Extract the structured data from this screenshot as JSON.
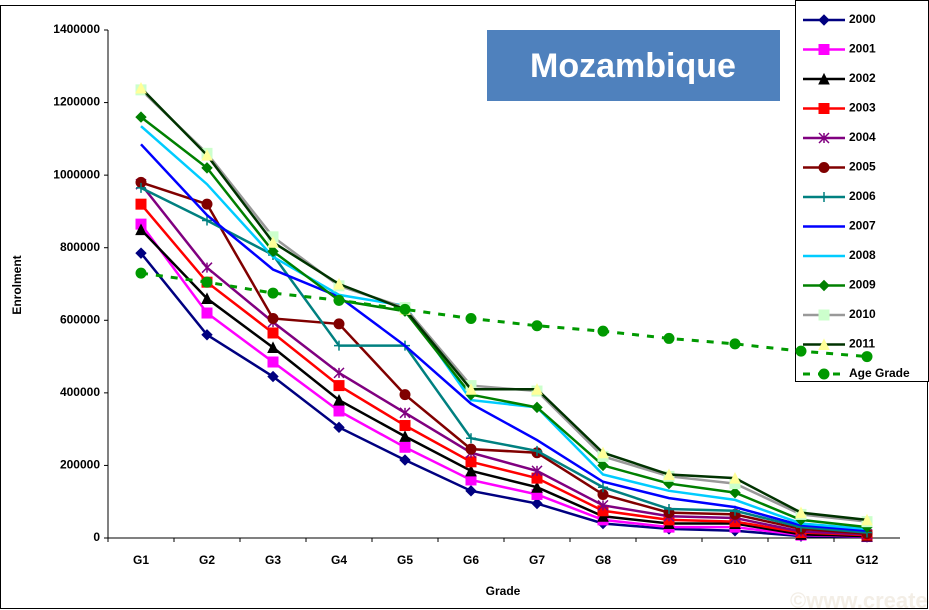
{
  "chart_data": {
    "type": "line",
    "title": "Mozambique",
    "x_label": "Grade",
    "y_label": "Enrolment",
    "watermark": "©www.create-rpc.org",
    "categories": [
      "G1",
      "G2",
      "G3",
      "G4",
      "G5",
      "G6",
      "G7",
      "G8",
      "G9",
      "G10",
      "G11",
      "G12"
    ],
    "ylim": [
      0,
      1400000
    ],
    "yticks": [
      0,
      200000,
      400000,
      600000,
      800000,
      1000000,
      1200000,
      1400000
    ],
    "grid": false,
    "legend": "right",
    "series": [
      {
        "name": "2000",
        "color": "#000080",
        "marker": "diamond",
        "values": [
          785000,
          560000,
          445000,
          305000,
          215000,
          130000,
          95000,
          40000,
          25000,
          20000,
          5000,
          3000
        ]
      },
      {
        "name": "2001",
        "color": "#ff00ff",
        "marker": "square",
        "values": [
          865000,
          620000,
          485000,
          350000,
          250000,
          160000,
          120000,
          50000,
          30000,
          30000,
          8000,
          4000
        ]
      },
      {
        "name": "2002",
        "color": "#000000",
        "marker": "triangle",
        "values": [
          850000,
          660000,
          525000,
          380000,
          280000,
          185000,
          140000,
          60000,
          40000,
          40000,
          10000,
          5000
        ]
      },
      {
        "name": "2003",
        "color": "#ff0000",
        "marker": "square",
        "values": [
          920000,
          705000,
          565000,
          420000,
          310000,
          210000,
          165000,
          75000,
          50000,
          45000,
          15000,
          8000
        ]
      },
      {
        "name": "2004",
        "color": "#800080",
        "marker": "star",
        "values": [
          975000,
          745000,
          595000,
          455000,
          345000,
          235000,
          185000,
          90000,
          60000,
          55000,
          18000,
          10000
        ]
      },
      {
        "name": "2005",
        "color": "#800000",
        "marker": "circle",
        "values": [
          980000,
          920000,
          605000,
          590000,
          395000,
          245000,
          235000,
          120000,
          70000,
          65000,
          25000,
          12000
        ]
      },
      {
        "name": "2006",
        "color": "#008080",
        "marker": "plus",
        "values": [
          965000,
          875000,
          780000,
          530000,
          530000,
          275000,
          240000,
          140000,
          80000,
          75000,
          30000,
          15000
        ]
      },
      {
        "name": "2007",
        "color": "#0000ff",
        "marker": "none",
        "values": [
          1085000,
          890000,
          740000,
          665000,
          530000,
          370000,
          270000,
          155000,
          110000,
          85000,
          35000,
          20000
        ]
      },
      {
        "name": "2008",
        "color": "#00ccff",
        "marker": "none",
        "values": [
          1135000,
          975000,
          775000,
          670000,
          640000,
          380000,
          360000,
          175000,
          130000,
          105000,
          40000,
          25000
        ]
      },
      {
        "name": "2009",
        "color": "#008000",
        "marker": "diamond",
        "values": [
          1160000,
          1020000,
          790000,
          655000,
          625000,
          395000,
          360000,
          200000,
          150000,
          125000,
          50000,
          30000
        ]
      },
      {
        "name": "2010",
        "color": "#999999",
        "marker": "square",
        "marker_color": "#ccffcc",
        "values": [
          1235000,
          1060000,
          830000,
          695000,
          635000,
          420000,
          405000,
          225000,
          170000,
          150000,
          65000,
          45000
        ]
      },
      {
        "name": "2011",
        "color": "#003300",
        "marker": "triangle",
        "marker_color": "#ffff99",
        "values": [
          1240000,
          1055000,
          815000,
          700000,
          630000,
          410000,
          410000,
          235000,
          175000,
          165000,
          70000,
          50000
        ]
      },
      {
        "name": "Age Grade",
        "color": "#009900",
        "marker": "circle",
        "dashed": true,
        "values": [
          730000,
          705000,
          675000,
          655000,
          630000,
          605000,
          585000,
          570000,
          550000,
          535000,
          515000,
          500000
        ]
      }
    ]
  }
}
